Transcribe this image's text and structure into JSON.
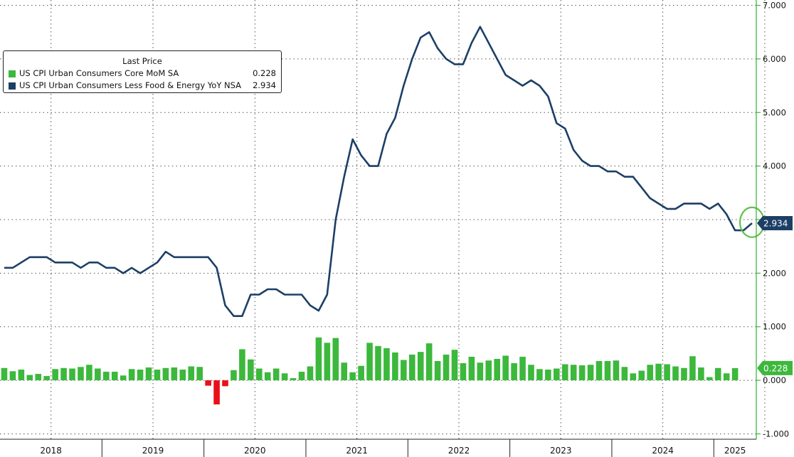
{
  "chart_data": {
    "type": "bar",
    "legend": {
      "header": "Last Price",
      "items": [
        {
          "name": "US CPI Urban Consumers Core MoM SA",
          "value": "0.228",
          "color": "#3cb83c",
          "kind": "bar"
        },
        {
          "name": "US CPI Urban Consumers Less Food & Energy YoY NSA",
          "value": "2.934",
          "color": "#1c3f66",
          "kind": "line"
        }
      ],
      "placement": "top-left"
    },
    "ylim": [
      -1.1,
      7.1
    ],
    "y_ticks": [
      "7.000",
      "6.000",
      "5.000",
      "4.000",
      "3.000",
      "2.000",
      "1.000",
      "0.000",
      "-1.000"
    ],
    "y_tick_values": [
      7,
      6,
      5,
      4,
      3,
      2,
      1,
      0,
      -1
    ],
    "x_labels": [
      "2018",
      "2019",
      "2020",
      "2021",
      "2022",
      "2023",
      "2024",
      "2025"
    ],
    "x_range_months": [
      0,
      89
    ],
    "grid": true,
    "series": [
      {
        "name": "US CPI Urban Consumers Core MoM SA",
        "type": "bar",
        "color_positive": "#3cb83c",
        "color_negative": "#e8101a",
        "start": "2018-01",
        "values": [
          0.23,
          0.17,
          0.2,
          0.1,
          0.12,
          0.08,
          0.21,
          0.23,
          0.22,
          0.25,
          0.29,
          0.22,
          0.16,
          0.16,
          0.09,
          0.21,
          0.2,
          0.24,
          0.2,
          0.23,
          0.24,
          0.2,
          0.26,
          0.25,
          -0.1,
          -0.45,
          -0.11,
          0.19,
          0.58,
          0.39,
          0.22,
          0.15,
          0.22,
          0.13,
          0.04,
          0.16,
          0.26,
          0.8,
          0.7,
          0.79,
          0.33,
          0.15,
          0.27,
          0.7,
          0.64,
          0.6,
          0.52,
          0.38,
          0.48,
          0.53,
          0.69,
          0.36,
          0.48,
          0.57,
          0.32,
          0.44,
          0.33,
          0.37,
          0.4,
          0.46,
          0.32,
          0.44,
          0.29,
          0.21,
          0.2,
          0.22,
          0.3,
          0.29,
          0.28,
          0.29,
          0.36,
          0.36,
          0.37,
          0.25,
          0.13,
          0.18,
          0.29,
          0.31,
          0.3,
          0.26,
          0.23,
          0.45,
          0.24,
          0.06,
          0.23,
          0.13,
          0.228
        ]
      },
      {
        "name": "US CPI Urban Consumers Less Food & Energy YoY NSA",
        "type": "line",
        "color": "#1c3f66",
        "start": "2018-01",
        "values": [
          2.1,
          2.1,
          2.2,
          2.3,
          2.3,
          2.3,
          2.2,
          2.2,
          2.2,
          2.1,
          2.2,
          2.2,
          2.1,
          2.1,
          2.0,
          2.1,
          2.0,
          2.1,
          2.2,
          2.4,
          2.3,
          2.3,
          2.3,
          2.3,
          2.3,
          2.1,
          1.4,
          1.2,
          1.2,
          1.6,
          1.6,
          1.7,
          1.7,
          1.6,
          1.6,
          1.6,
          1.4,
          1.3,
          1.6,
          3.0,
          3.8,
          4.5,
          4.2,
          4.0,
          4.0,
          4.6,
          4.9,
          5.5,
          6.0,
          6.4,
          6.5,
          6.2,
          6.0,
          5.9,
          5.9,
          6.3,
          6.6,
          6.3,
          6.0,
          5.7,
          5.6,
          5.5,
          5.6,
          5.5,
          5.3,
          4.8,
          4.7,
          4.3,
          4.1,
          4.0,
          4.0,
          3.9,
          3.9,
          3.8,
          3.8,
          3.6,
          3.4,
          3.3,
          3.2,
          3.2,
          3.3,
          3.3,
          3.3,
          3.2,
          3.3,
          3.1,
          2.8,
          2.8,
          2.934
        ]
      }
    ],
    "last_value_tags": [
      {
        "label": "2.934",
        "value": 2.934,
        "color": "#1c3f66"
      },
      {
        "label": "0.228",
        "value": 0.228,
        "color": "#3cb83c"
      }
    ],
    "annotation": {
      "type": "circle",
      "month": 88.5,
      "value": 2.95,
      "color": "#5cc24a"
    }
  }
}
